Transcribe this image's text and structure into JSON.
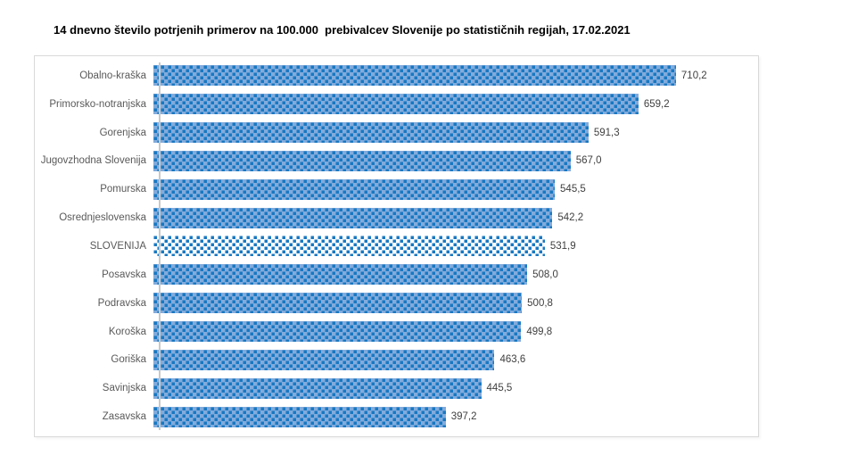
{
  "chart_data": {
    "type": "bar",
    "orientation": "horizontal",
    "title": "14 dnevno število potrjenih primerov na 100.000  prebivalcev Slovenije po statističnih regijah, 17.02.2021",
    "categories": [
      "Obalno-kraška",
      "Primorsko-notranjska",
      "Gorenjska",
      "Jugovzhodna Slovenija",
      "Pomurska",
      "Osrednjeslovenska",
      "SLOVENIJA",
      "Posavska",
      "Podravska",
      "Koroška",
      "Goriška",
      "Savinjska",
      "Zasavska"
    ],
    "values": [
      710.2,
      659.2,
      591.3,
      567.0,
      545.5,
      542.2,
      531.9,
      508.0,
      500.8,
      499.8,
      463.6,
      445.5,
      397.2
    ],
    "value_labels": [
      "710,2",
      "659,2",
      "591,3",
      "567,0",
      "545,5",
      "542,2",
      "531,9",
      "508,0",
      "500,8",
      "499,8",
      "463,6",
      "445,5",
      "397,2"
    ],
    "highlight_category": "SLOVENIJA",
    "xlabel": "",
    "ylabel": "",
    "xlim": [
      0,
      800
    ],
    "grid": false,
    "legend": false,
    "data_labels": true,
    "colors": {
      "bar_background": "#82ABDC",
      "bar_dot": "#1878C2",
      "highlight_bar_background": "#FFFFFF",
      "category_label": "#595959",
      "value_label": "#404040",
      "frame_border": "#D9D9D9",
      "axis_line": "#C9C9C9",
      "title": "#000000"
    }
  }
}
